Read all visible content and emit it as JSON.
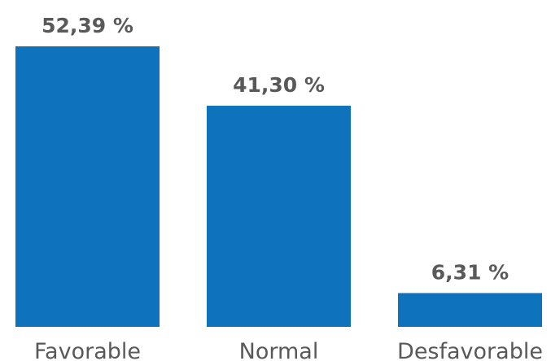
{
  "chart_data": {
    "type": "bar",
    "categories": [
      "Favorable",
      "Normal",
      "Desfavorable"
    ],
    "values": [
      52.39,
      41.3,
      6.31
    ],
    "value_labels": [
      "52,39 %",
      "41,30 %",
      "6,31 %"
    ],
    "ylim": [
      0,
      52.39
    ],
    "grid": false,
    "legend": "none",
    "bar_color": "#0f72bd",
    "text_color": "#595959"
  }
}
